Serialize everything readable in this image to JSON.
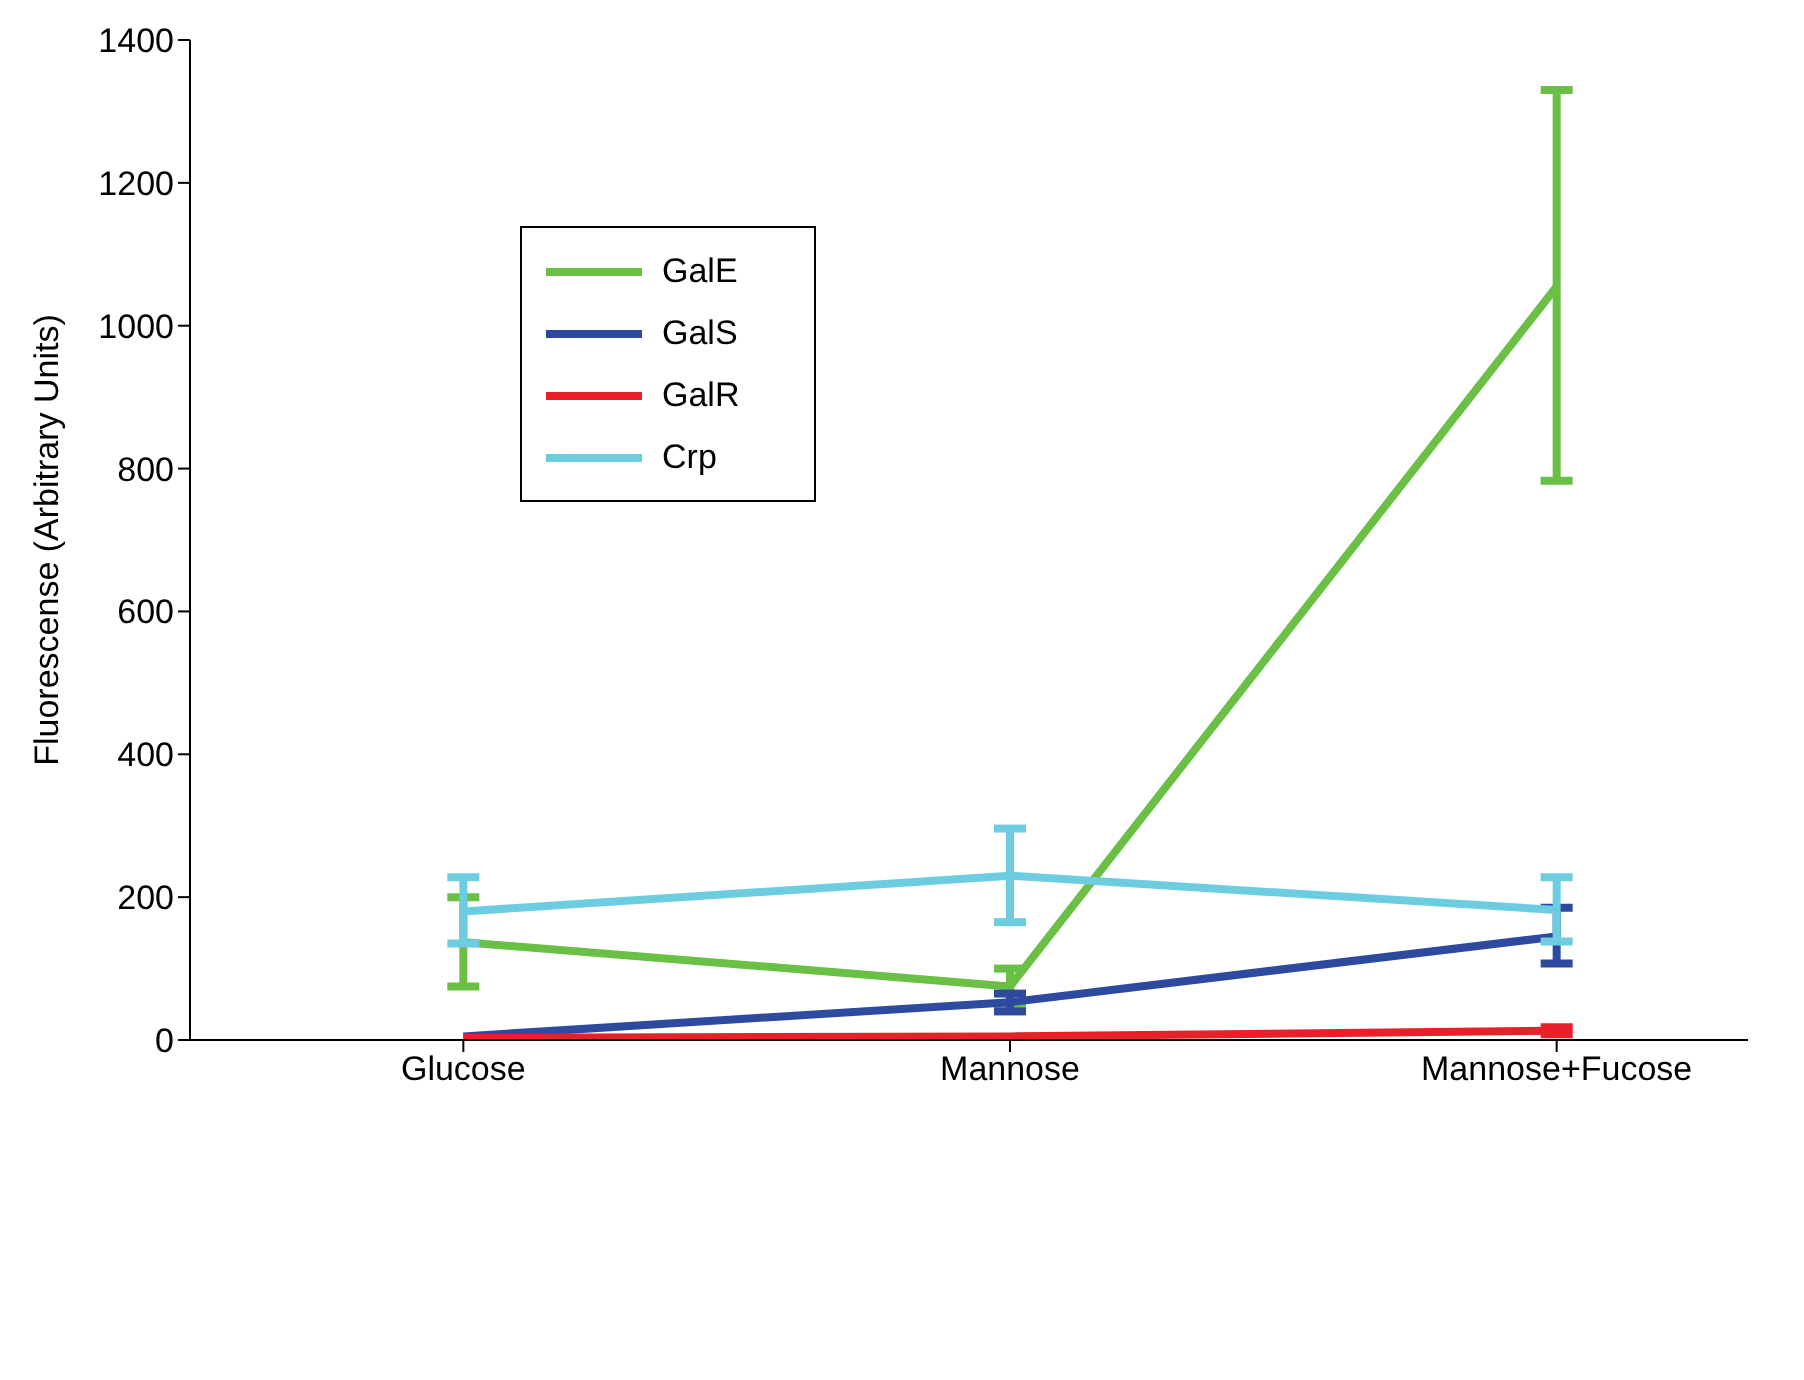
{
  "chart_data": {
    "type": "line",
    "ylabel": "Fluorescense (Arbitrary Units)",
    "categories": [
      "Glucose",
      "Mannose",
      "Mannose+Fucose"
    ],
    "ylim": [
      0,
      1400
    ],
    "yticks": [
      0,
      200,
      400,
      600,
      800,
      1000,
      1200,
      1400
    ],
    "grid": false,
    "legend": "top left",
    "marker": "none",
    "line_style": "solid",
    "series": [
      {
        "name": "GalE",
        "color": "#6abf45",
        "values": [
          137,
          75,
          1055
        ],
        "errors": [
          [
            75,
            200
          ],
          [
            50,
            100
          ],
          [
            783,
            1330
          ]
        ]
      },
      {
        "name": "GalS",
        "color": "#2e4a9e",
        "values": [
          5,
          53,
          145
        ],
        "errors": [
          null,
          [
            40,
            65
          ],
          [
            107,
            185
          ]
        ]
      },
      {
        "name": "GalR",
        "color": "#e8202a",
        "values": [
          3,
          5,
          13
        ],
        "errors": [
          null,
          null,
          [
            8,
            18
          ]
        ]
      },
      {
        "name": "Crp",
        "color": "#6ccde0",
        "values": [
          180,
          230,
          182
        ],
        "errors": [
          [
            135,
            228
          ],
          [
            165,
            296
          ],
          [
            138,
            228
          ]
        ]
      }
    ]
  }
}
